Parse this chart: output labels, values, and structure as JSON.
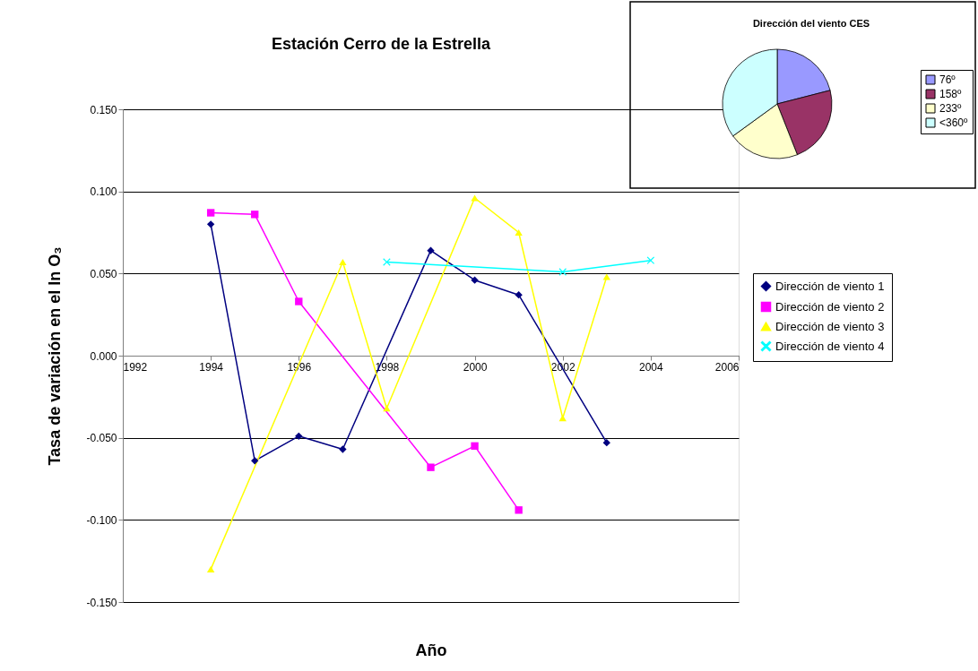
{
  "chart_data": [
    {
      "type": "line",
      "title": "Estación Cerro de la Estrella",
      "xlabel": "Año",
      "ylabel": "Tasa de variación en el ln O₃",
      "xlim": [
        1992,
        2006
      ],
      "xticks": [
        1992,
        1994,
        1996,
        1998,
        2000,
        2002,
        2004,
        2006
      ],
      "ylim": [
        -0.15,
        0.15
      ],
      "yticks": [
        {
          "value": -0.15,
          "label": "-0.150"
        },
        {
          "value": -0.1,
          "label": "-0.100"
        },
        {
          "value": -0.05,
          "label": "-0.050"
        },
        {
          "value": 0,
          "label": "0.000"
        },
        {
          "value": 0.05,
          "label": "0.050"
        },
        {
          "value": 0.1,
          "label": "0.100"
        },
        {
          "value": 0.15,
          "label": "0.150"
        }
      ],
      "grid": "y",
      "legend": "right",
      "line_style": "solid",
      "series": [
        {
          "name": "Dirección de viento 1",
          "color": "#000080",
          "marker": "diamond",
          "x": [
            1994,
            1995,
            1996,
            1997,
            1999,
            2000,
            2001,
            2003
          ],
          "values": [
            0.08,
            -0.064,
            -0.049,
            -0.057,
            0.064,
            0.046,
            0.037,
            -0.053
          ]
        },
        {
          "name": "Dirección de viento 2",
          "color": "#ff00ff",
          "marker": "square",
          "x": [
            1994,
            1995,
            1996,
            1999,
            2000,
            2001
          ],
          "values": [
            0.087,
            0.086,
            0.033,
            -0.068,
            -0.055,
            -0.094
          ]
        },
        {
          "name": "Dirección de viento 3",
          "color": "#ffff00",
          "marker": "triangle",
          "x": [
            1994,
            1997,
            1998,
            2000,
            2001,
            2002,
            2003
          ],
          "values": [
            -0.13,
            0.057,
            -0.032,
            0.096,
            0.075,
            -0.038,
            0.048
          ]
        },
        {
          "name": "Dirección de viento 4",
          "color": "#00ffff",
          "marker": "cross",
          "x": [
            1998,
            2002,
            2004
          ],
          "values": [
            0.057,
            0.051,
            0.058
          ]
        }
      ]
    },
    {
      "type": "pie",
      "title": "Dirección del viento CES",
      "legend": "right",
      "categories": [
        "76º",
        "158º",
        "233º",
        "<360º"
      ],
      "values": [
        21,
        23,
        21,
        35
      ],
      "colors": [
        "#9999ff",
        "#993366",
        "#ffffcc",
        "#ccffff"
      ]
    }
  ]
}
